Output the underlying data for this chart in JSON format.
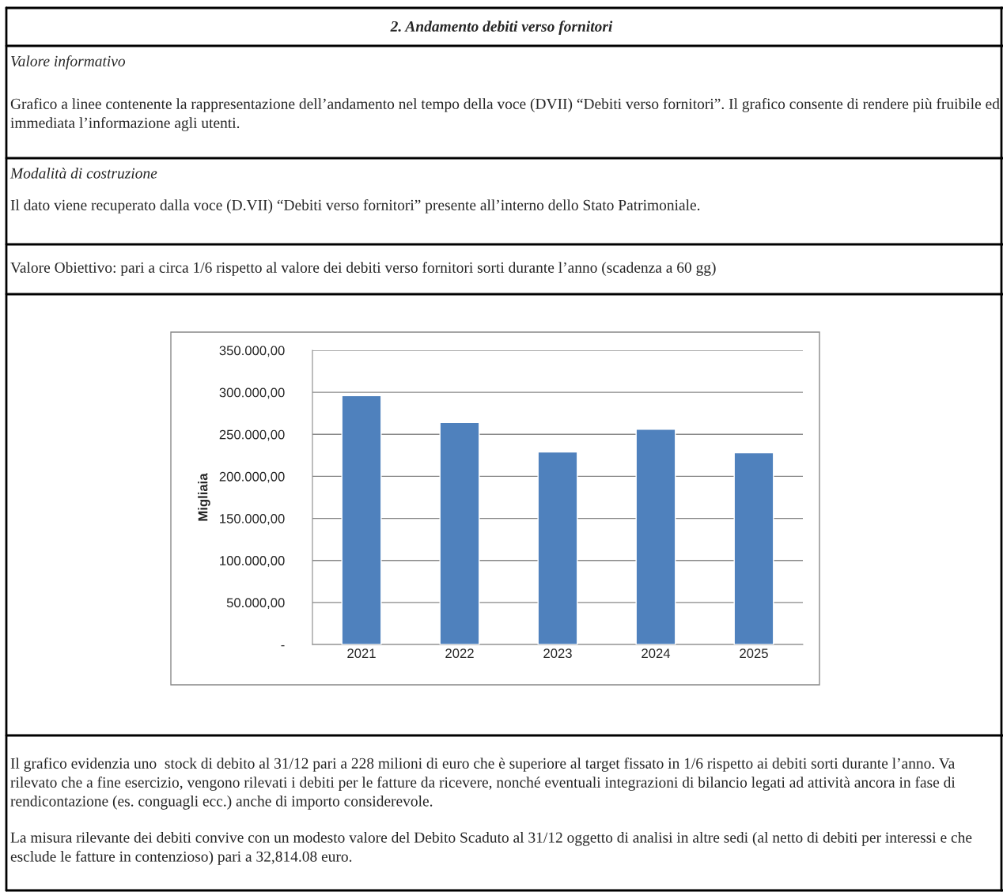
{
  "chart_data": {
    "type": "bar",
    "title": "2. Andamento debiti verso fornitori",
    "categories": [
      "2021",
      "2022",
      "2023",
      "2024",
      "2025"
    ],
    "values": [
      296000,
      264000,
      229000,
      256000,
      228000
    ],
    "color": "#4f81bd",
    "ylabel": "Migliaia",
    "ylim": [
      0,
      350000
    ],
    "yticks": [
      {
        "value": 0,
        "label": "-"
      },
      {
        "value": 50000,
        "label": "50.000,00"
      },
      {
        "value": 100000,
        "label": "100.000,00"
      },
      {
        "value": 150000,
        "label": "150.000,00"
      },
      {
        "value": 200000,
        "label": "200.000,00"
      },
      {
        "value": 250000,
        "label": "250.000,00"
      },
      {
        "value": 300000,
        "label": "300.000,00"
      },
      {
        "value": 350000,
        "label": "350.000,00"
      }
    ],
    "grid": "y",
    "annotations": [
      "Valore informativo",
      "Grafico a linee contenente la rappresentazione dell’andamento nel tempo della voce (DVII) “Debiti verso fornitori”. Il grafico consente di rendere più fruibile ed immediata l’informazione agli utenti.",
      "Modalità di costruzione",
      "Il dato viene recuperato dalla voce (D.VII) “Debiti verso fornitori” presente all’interno dello Stato Patrimoniale.",
      "Valore Obiettivo: pari a circa 1/6 rispetto al valore dei debiti verso fornitori sorti durante l’anno (scadenza a 60 gg)",
      "Il grafico evidenzia uno  stock di debito al 31/12 pari a 228 milioni di euro che è superiore al target fissato in 1/6 rispetto ai debiti sorti durante l’anno. Va rilevato che a fine esercizio, vengono rilevati i debiti per le fatture da ricevere, nonché eventuali integrazioni di bilancio legati ad attività ancora in fase di rendicontazione (es. conguagli ecc.) anche di importo considerevole.",
      "La misura rilevante dei debiti convive con un modesto valore del Debito Scaduto al 31/12 oggetto di analisi in altre sedi (al netto di debiti per interessi e che esclude le fatture in contenzioso) pari a 32,814.08 euro."
    ]
  }
}
